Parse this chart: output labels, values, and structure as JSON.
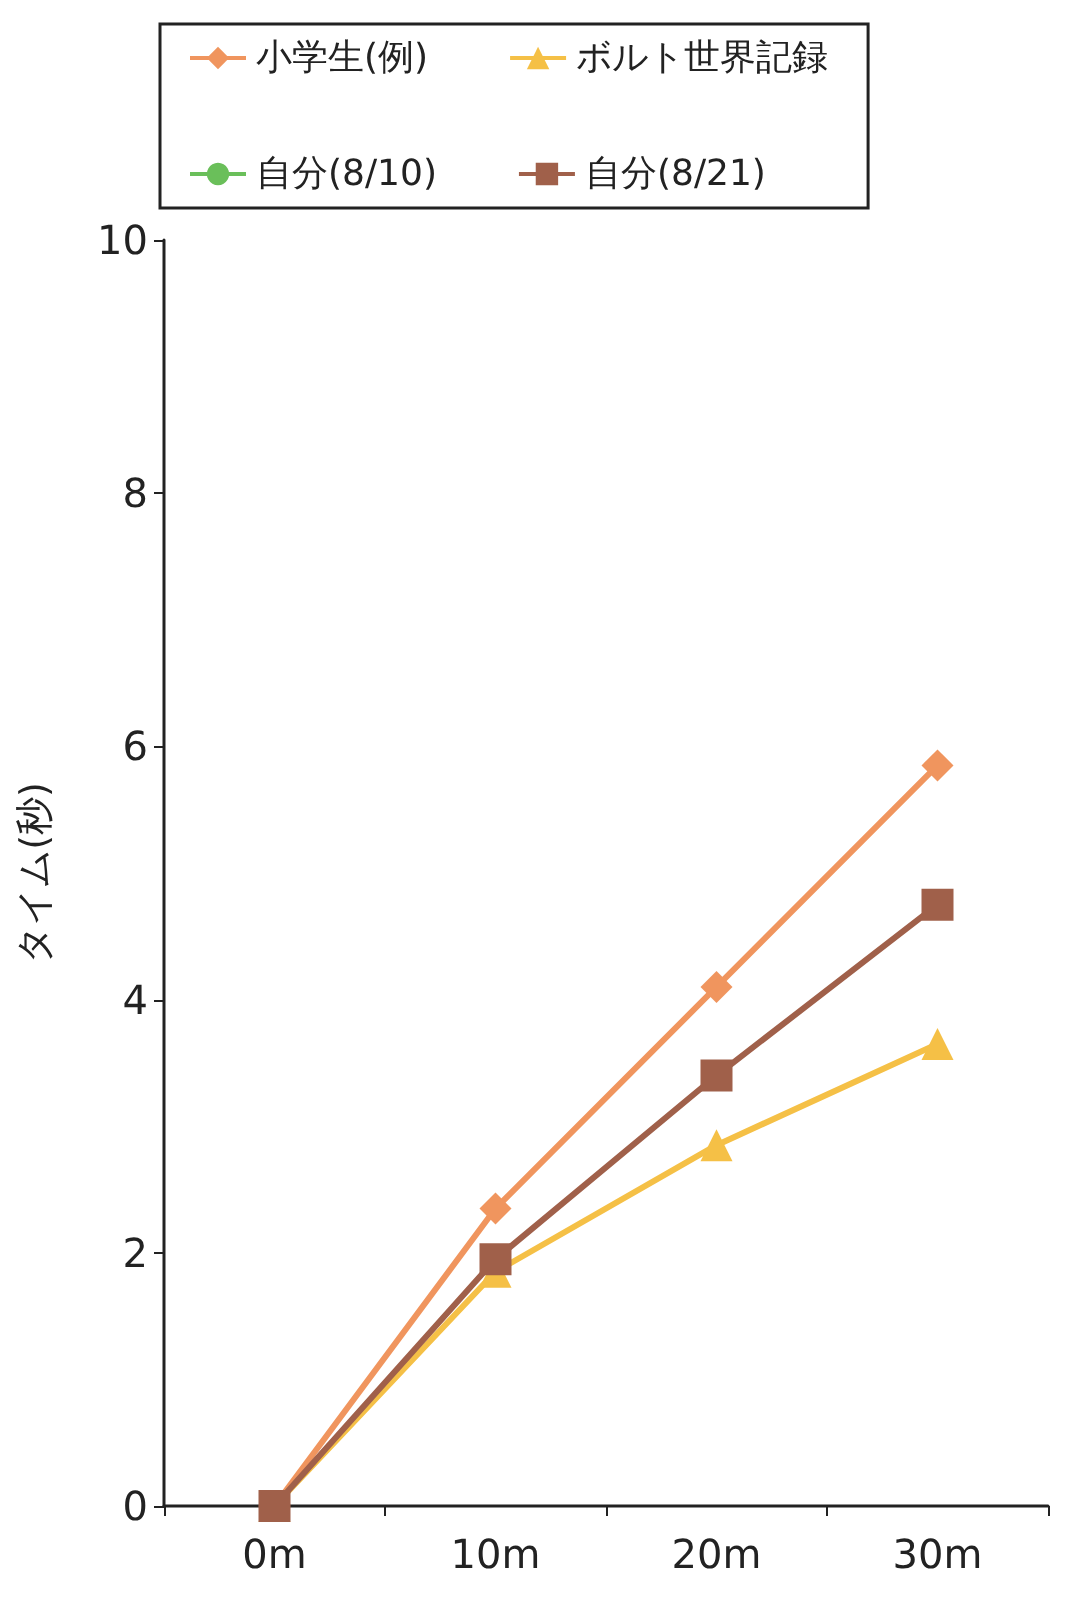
{
  "chart_data": {
    "type": "line",
    "ylabel": "タイム(秒)",
    "categories": [
      "0m",
      "10m",
      "20m",
      "30m"
    ],
    "series": [
      {
        "name": "小学生(例)",
        "color": "#f0955e",
        "marker": "diamond",
        "values": [
          0,
          2.35,
          4.1,
          5.85
        ]
      },
      {
        "name": "ボルト世界記録",
        "color": "#f5c046",
        "marker": "triangle",
        "values": [
          0,
          1.85,
          2.85,
          3.65
        ]
      },
      {
        "name": "自分(8/10)",
        "color": "#6abf5a",
        "marker": "circle",
        "values": [
          null,
          null,
          null,
          null
        ]
      },
      {
        "name": "自分(8/21)",
        "color": "#a0604a",
        "marker": "square",
        "values": [
          0,
          1.95,
          3.4,
          4.75
        ]
      }
    ],
    "ylim": [
      0,
      10
    ],
    "yticks": [
      0,
      2,
      4,
      6,
      8,
      10
    ],
    "grid": false,
    "legend": "top"
  }
}
